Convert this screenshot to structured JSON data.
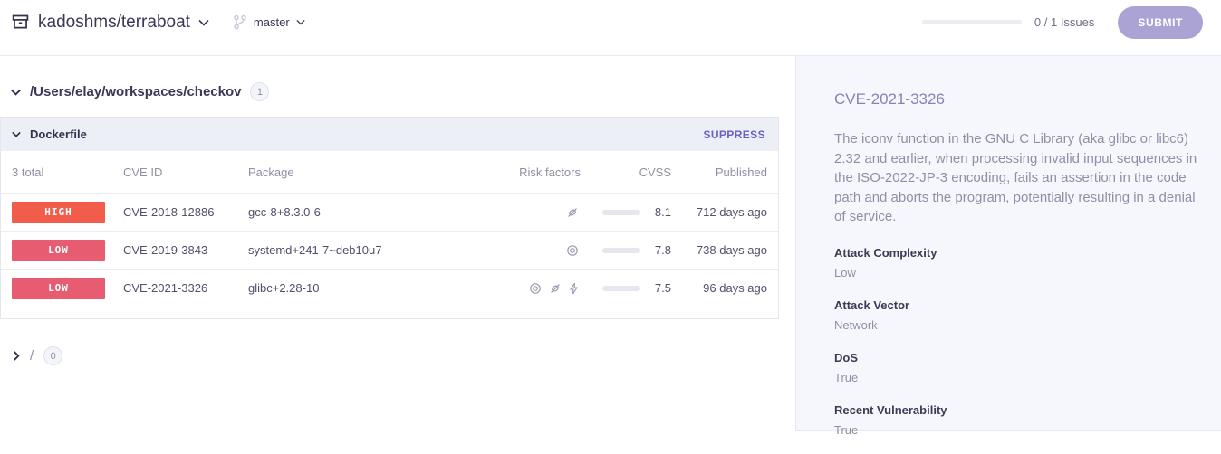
{
  "topbar": {
    "repo": "kadoshms/terraboat",
    "branch": "master",
    "issues_label": "0 / 1 Issues",
    "submit_label": "SUBMIT"
  },
  "workspace": {
    "path": "/Users/elay/workspaces/checkov",
    "badge": "1"
  },
  "card": {
    "title": "Dockerfile",
    "suppress_label": "SUPPRESS",
    "table": {
      "total_label": "3 total",
      "headers": [
        "CVE ID",
        "Package",
        "Risk factors",
        "CVSS",
        "Published"
      ],
      "rows": [
        {
          "severity": "HIGH",
          "cve_id": "CVE-2018-12886",
          "package": "gcc-8+8.3.0-6",
          "risk_icons": [
            "exploit-slashed"
          ],
          "cvss": "8.1",
          "published": "712 days ago"
        },
        {
          "severity": "LOW",
          "cve_id": "CVE-2019-3843",
          "package": "systemd+241-7~deb10u7",
          "risk_icons": [
            "attack-vector"
          ],
          "cvss": "7.8",
          "published": "738 days ago"
        },
        {
          "severity": "LOW",
          "cve_id": "CVE-2021-3326",
          "package": "glibc+2.28-10",
          "risk_icons": [
            "attack-vector",
            "exploit-slashed",
            "dos"
          ],
          "cvss": "7.5",
          "published": "96 days ago"
        }
      ]
    }
  },
  "collapsed_group": {
    "path": "/",
    "badge": "0"
  },
  "details": {
    "title": "CVE-2021-3326",
    "description": "The iconv function in the GNU C Library (aka glibc or libc6) 2.32 and earlier, when processing invalid input sequences in the ISO-2022-JP-3 encoding, fails an assertion in the code path and aborts the program, potentially resulting in a denial of service.",
    "attributes": [
      {
        "label": "Attack Complexity",
        "value": "Low"
      },
      {
        "label": "Attack Vector",
        "value": "Network"
      },
      {
        "label": "DoS",
        "value": "True"
      },
      {
        "label": "Recent Vulnerability",
        "value": "True"
      }
    ]
  },
  "colors": {
    "severity_high": "#f25c4a",
    "severity_low": "#e85c72",
    "cvss_bar": "#574d9f",
    "submit_button": "#aba3d4",
    "suppress_link": "#6c5ec9",
    "panel_background": "#f5f7fc",
    "details_title": "#8b81b4"
  }
}
